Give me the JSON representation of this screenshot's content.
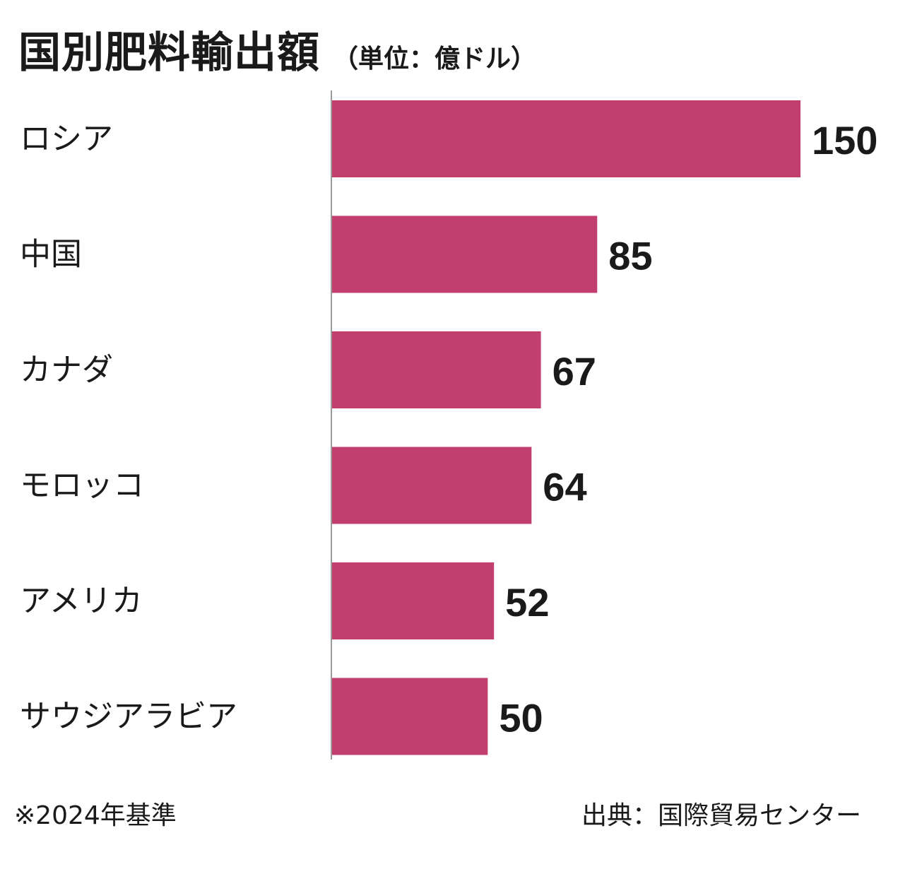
{
  "header": {
    "title": "国別肥料輸出額",
    "unit": "（単位：億ドル）"
  },
  "footer": {
    "note": "※2024年基準",
    "source": "出典：国際貿易センター"
  },
  "colors": {
    "bar": "#c13e6e",
    "axis": "#9a9a9a",
    "text": "#1a1a1a"
  },
  "chart_data": {
    "type": "bar",
    "orientation": "horizontal",
    "title": "国別肥料輸出額",
    "subtitle": "（単位：億ドル）",
    "categories": [
      "ロシア",
      "中国",
      "カナダ",
      "モロッコ",
      "アメリカ",
      "サウジアラビア"
    ],
    "values": [
      150,
      85,
      67,
      64,
      52,
      50
    ],
    "data_labels": [
      "150",
      "85",
      "67",
      "64",
      "52",
      "50"
    ],
    "xlim": [
      0,
      150
    ],
    "grid": false,
    "legend": "none"
  }
}
